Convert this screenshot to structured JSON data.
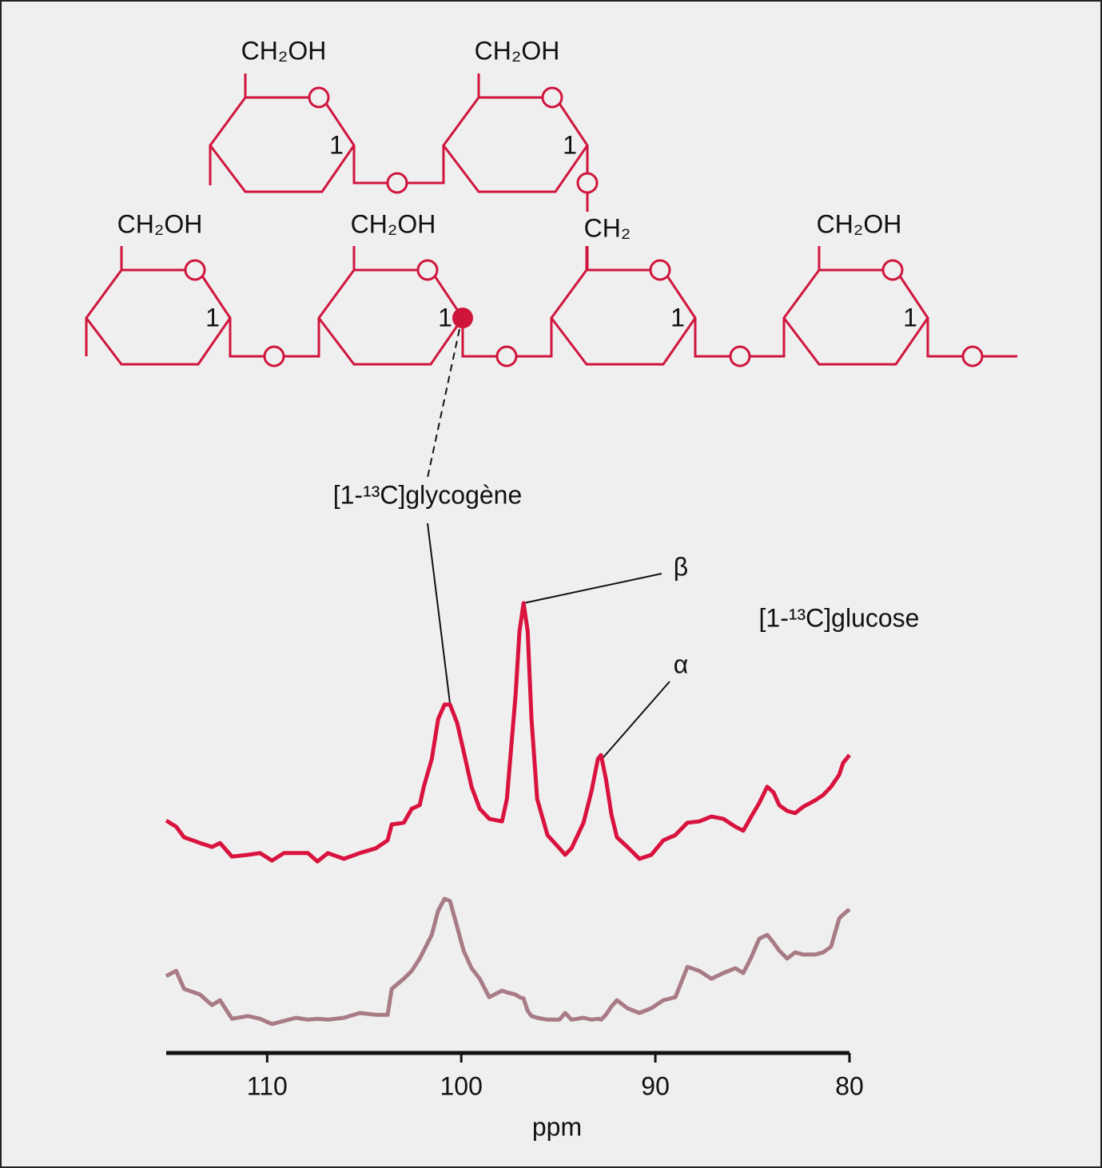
{
  "chart_data": {
    "type": "line",
    "x": [
      115.2,
      114.69,
      114.28,
      113.46,
      112.84,
      112.43,
      111.81,
      110.99,
      110.37,
      109.75,
      109.14,
      108.52,
      107.9,
      107.41,
      106.87,
      106.05,
      105.23,
      104.4,
      103.79,
      103.58,
      102.96,
      102.55,
      102.14,
      101.93,
      101.52,
      101.19,
      100.86,
      100.58,
      100.21,
      99.88,
      99.47,
      99.05,
      98.56,
      97.9,
      97.65,
      97.2,
      97.0,
      96.79,
      96.58,
      96.38,
      96.09,
      95.56,
      94.94,
      94.65,
      94.32,
      93.7,
      93.29,
      92.96,
      92.8,
      92.55,
      92.26,
      91.98,
      91.44,
      90.82,
      90.21,
      89.59,
      88.97,
      88.35,
      87.74,
      87.12,
      86.5,
      85.88,
      85.47,
      85.06,
      84.65,
      84.24,
      83.91,
      83.62,
      83.21,
      82.8,
      82.39,
      81.77,
      81.36,
      80.95,
      80.53,
      80.33,
      80
    ],
    "series": [
      {
        "color": "#d9123e",
        "values": [
          47.8,
          46.4,
          44.0,
          42.7,
          41.8,
          42.7,
          39.6,
          40.0,
          40.4,
          38.7,
          40.4,
          40.4,
          40.4,
          38.5,
          40.4,
          39.1,
          40.4,
          41.5,
          43.3,
          46.9,
          47.3,
          50.5,
          51.3,
          55.5,
          61.8,
          70.9,
          74.2,
          74.2,
          70.0,
          63.6,
          55.5,
          50.5,
          48.2,
          47.6,
          52.7,
          76.4,
          90.9,
          97.3,
          90.9,
          70.9,
          52.7,
          44.5,
          41.5,
          40.0,
          41.5,
          47.3,
          54.5,
          61.8,
          62.7,
          57.3,
          49.1,
          44.0,
          41.8,
          39.1,
          40.0,
          43.3,
          44.5,
          47.3,
          47.6,
          48.7,
          48.2,
          46.4,
          45.5,
          48.7,
          51.8,
          55.5,
          54.2,
          51.3,
          50.0,
          49.5,
          50.9,
          52.4,
          53.6,
          55.5,
          58.2,
          60.9,
          62.7
        ]
      },
      {
        "color": "#a87b85",
        "values": [
          12.4,
          13.6,
          9.5,
          8.2,
          5.8,
          6.9,
          2.7,
          3.3,
          2.7,
          1.5,
          2.2,
          2.9,
          2.5,
          2.7,
          2.5,
          2.9,
          4.0,
          3.6,
          3.6,
          9.5,
          11.8,
          13.6,
          16.4,
          18.2,
          21.8,
          27.3,
          30.0,
          29.5,
          23.6,
          18.2,
          14.2,
          11.8,
          7.6,
          9.1,
          8.7,
          8.2,
          7.6,
          7.3,
          4.5,
          3.3,
          2.9,
          2.5,
          2.5,
          4.0,
          2.5,
          2.9,
          2.5,
          2.7,
          2.5,
          3.6,
          5.5,
          6.9,
          5.1,
          4.0,
          5.1,
          6.9,
          7.6,
          14.5,
          13.6,
          11.8,
          13.1,
          14.2,
          13.1,
          16.7,
          20.9,
          21.8,
          20.0,
          18.2,
          16.4,
          17.8,
          17.3,
          17.3,
          17.8,
          19.1,
          25.5,
          26.4,
          27.6
        ]
      }
    ],
    "xlim": [
      115.2,
      80
    ],
    "xticks": [
      110,
      100,
      90,
      80
    ],
    "ylim": [
      0,
      100
    ],
    "x_label": "ppm",
    "annotations": [
      "[1-¹³C]glycogène",
      "β",
      "α",
      "[1-¹³C]glucose"
    ]
  },
  "structure": {
    "group_labels": [
      "CH₂OH",
      "CH₂OH",
      "CH₂OH",
      "CH₂OH",
      "CH₂",
      "CH₂OH"
    ],
    "carbon_labels": [
      "1",
      "1",
      "1",
      "1",
      "1",
      "1"
    ]
  }
}
